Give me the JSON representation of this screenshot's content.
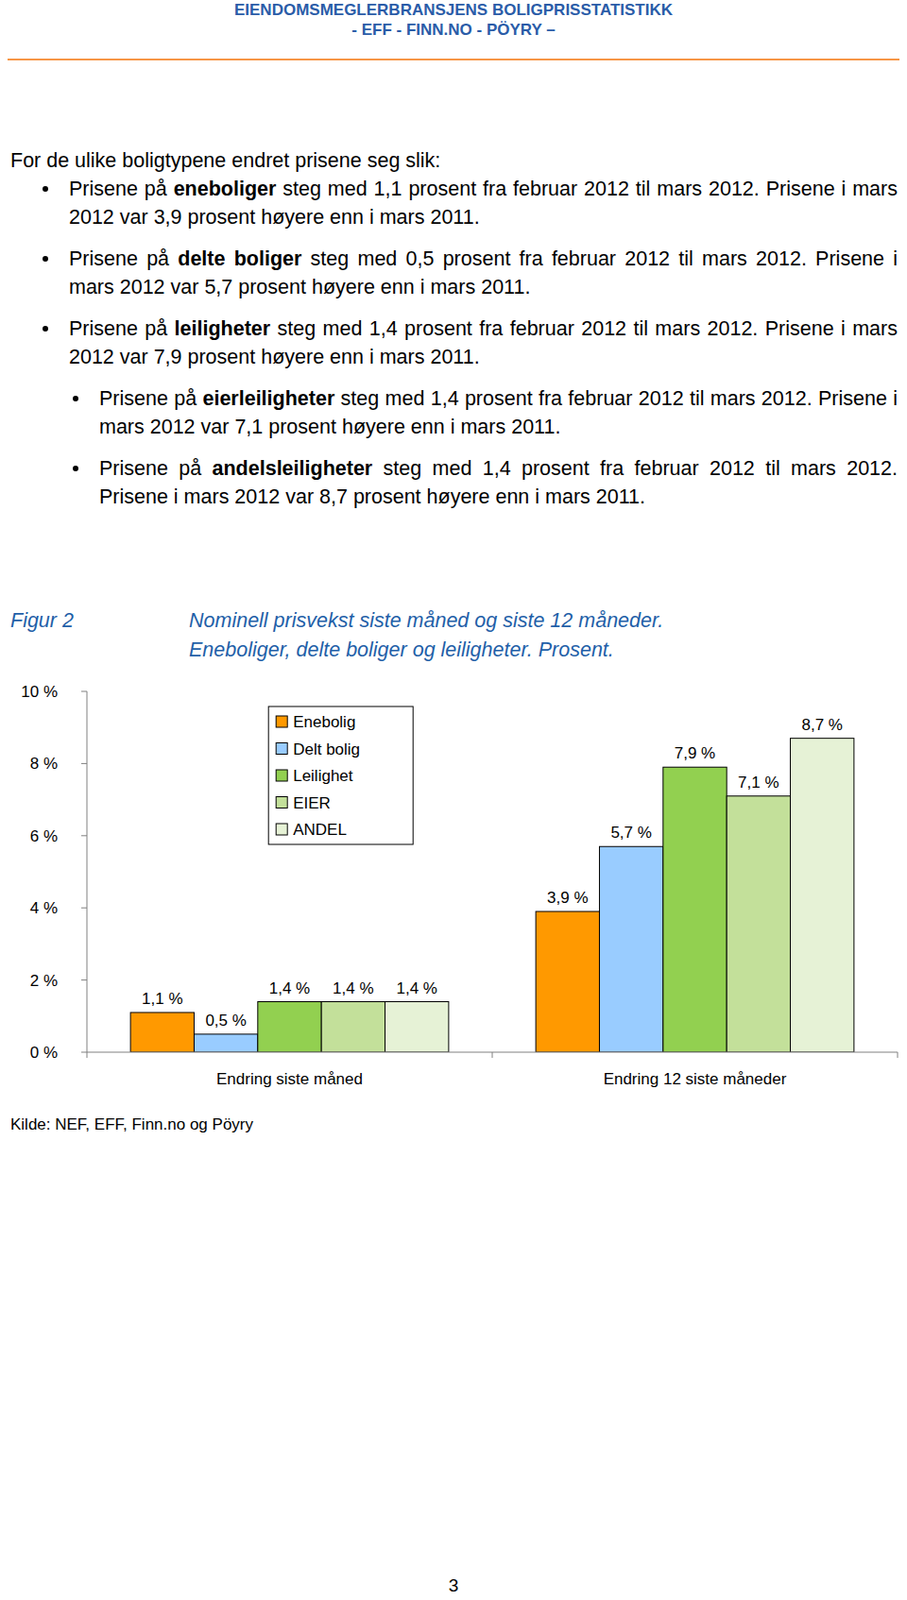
{
  "header": {
    "line1": "EIENDOMSMEGLERBRANSJENS BOLIGPRISSTATISTIKK",
    "line2": "- EFF - FINN.NO - PÖYRY –"
  },
  "intro": "For de ulike boligtypene endret prisene seg slik:",
  "bullets": [
    {
      "prefix": "Prisene på ",
      "bold": "eneboliger",
      "text": " steg med 1,1 prosent fra februar 2012 til mars 2012. Prisene i mars 2012 var 3,9 prosent høyere enn i mars 2011."
    },
    {
      "prefix": "Prisene på ",
      "bold": "delte boliger",
      "text": " steg med 0,5 prosent fra februar 2012 til mars 2012. Prisene i mars 2012 var 5,7 prosent høyere enn i mars 2011."
    },
    {
      "prefix": "Prisene på ",
      "bold": "leiligheter",
      "text": " steg med 1,4 prosent fra februar 2012 til mars 2012. Prisene i mars 2012 var 7,9 prosent høyere enn i mars 2011.",
      "children": [
        {
          "prefix": "Prisene på ",
          "bold": "eierleiligheter",
          "text": " steg med 1,4 prosent fra februar 2012 til mars 2012. Prisene i mars 2012 var 7,1 prosent høyere enn i mars 2011."
        },
        {
          "prefix": "Prisene på ",
          "bold": "andelsleiligheter",
          "text": " steg med 1,4 prosent fra februar 2012 til mars 2012. Prisene i mars 2012 var 8,7 prosent høyere enn i mars 2011."
        }
      ]
    }
  ],
  "figure_label": "Figur 2",
  "chart_data": {
    "type": "bar",
    "title": "Nominell prisvekst siste måned og siste 12 måneder.",
    "subtitle": "Eneboliger, delte boliger og leiligheter. Prosent.",
    "categories": [
      "Endring siste måned",
      "Endring 12 siste måneder"
    ],
    "series": [
      {
        "name": "Enebolig",
        "color": "#ff9900",
        "values": [
          1.1,
          3.9
        ],
        "value_labels": [
          "1,1 %",
          "3,9 %"
        ]
      },
      {
        "name": "Delt bolig",
        "color": "#99ccff",
        "values": [
          0.5,
          5.7
        ],
        "value_labels": [
          "0,5 %",
          "5,7 %"
        ]
      },
      {
        "name": "Leilighet",
        "color": "#92d050",
        "values": [
          1.4,
          7.9
        ],
        "value_labels": [
          "1,4 %",
          "7,9 %"
        ]
      },
      {
        "name": "EIER",
        "color": "#c3e09a",
        "values": [
          1.4,
          7.1
        ],
        "value_labels": [
          "1,4 %",
          "7,1 %"
        ]
      },
      {
        "name": "ANDEL",
        "color": "#e6f2d6",
        "values": [
          1.4,
          8.7
        ],
        "value_labels": [
          "1,4 %",
          "8,7 %"
        ]
      }
    ],
    "ylim": [
      0,
      10
    ],
    "yticks": [
      {
        "value": 0,
        "label": "0 %"
      },
      {
        "value": 2,
        "label": "2 %"
      },
      {
        "value": 4,
        "label": "4 %"
      },
      {
        "value": 6,
        "label": "6 %"
      },
      {
        "value": 8,
        "label": "8 %"
      },
      {
        "value": 10,
        "label": "10 %"
      }
    ],
    "grid": false,
    "legend": "top-left",
    "data_labels": true
  },
  "source": "Kilde: NEF, EFF, Finn.no og Pöyry",
  "page_number": "3"
}
